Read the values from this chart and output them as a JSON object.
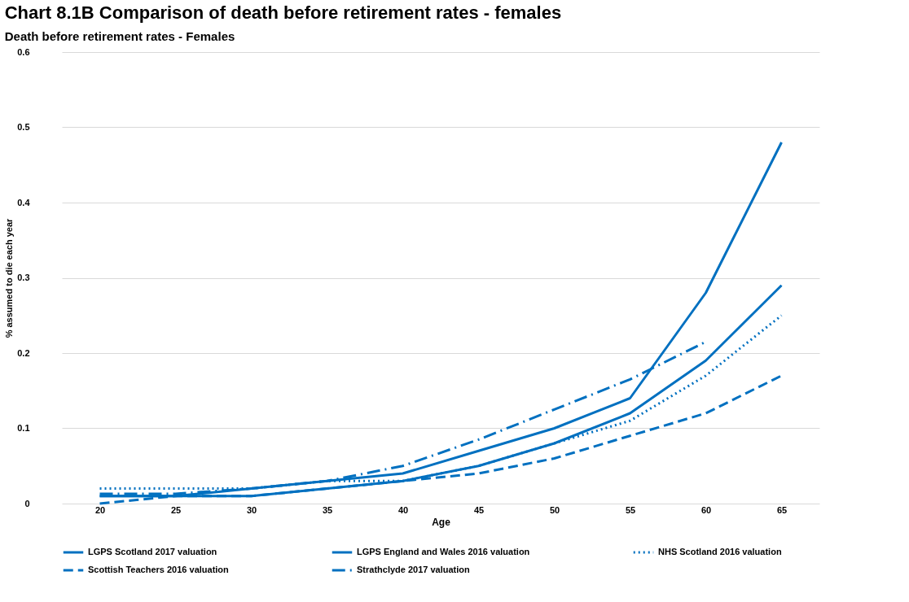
{
  "chart_data": {
    "type": "line",
    "title": "Chart 8.1B Comparison of death before retirement rates - females",
    "subtitle": "Death before retirement rates - Females",
    "xlabel": "Age",
    "ylabel": "% assumed to die each year",
    "categories": [
      "20",
      "25",
      "30",
      "35",
      "40",
      "45",
      "50",
      "55",
      "60",
      "65"
    ],
    "series": [
      {
        "name": "LGPS Scotland 2017 valuation",
        "color": "#0070c0",
        "line_style": "solid",
        "values": [
          0.01,
          0.01,
          0.02,
          0.03,
          0.04,
          0.07,
          0.1,
          0.14,
          0.28,
          0.48
        ]
      },
      {
        "name": "LGPS England and Wales 2016 valuation",
        "color": "#0070c0",
        "line_style": "solid",
        "values": [
          0.01,
          0.01,
          0.01,
          0.02,
          0.03,
          0.05,
          0.08,
          0.12,
          0.19,
          0.29
        ]
      },
      {
        "name": "NHS Scotland 2016 valuation",
        "color": "#0070c0",
        "line_style": "dotted",
        "values": [
          0.02,
          0.02,
          0.02,
          0.03,
          0.03,
          0.05,
          0.08,
          0.11,
          0.17,
          0.25
        ]
      },
      {
        "name": "Scottish Teachers 2016 valuation",
        "color": "#0070c0",
        "line_style": "dashed",
        "values": [
          0,
          0.01,
          0.01,
          0.02,
          0.03,
          0.04,
          0.06,
          0.09,
          0.12,
          0.17
        ]
      },
      {
        "name": "Strathclyde 2017 valuation",
        "color": "#0070c0",
        "line_style": "dashdot",
        "values": [
          0.013,
          0.013,
          0.02,
          0.03,
          0.05,
          0.085,
          0.125,
          0.165,
          0.215,
          null
        ]
      }
    ],
    "ylim": [
      0,
      0.6
    ],
    "yticks": [
      0,
      0.1,
      0.2,
      0.3,
      0.4,
      0.5,
      0.6
    ],
    "grid": "y",
    "legend": "bottom",
    "marker": "none"
  }
}
